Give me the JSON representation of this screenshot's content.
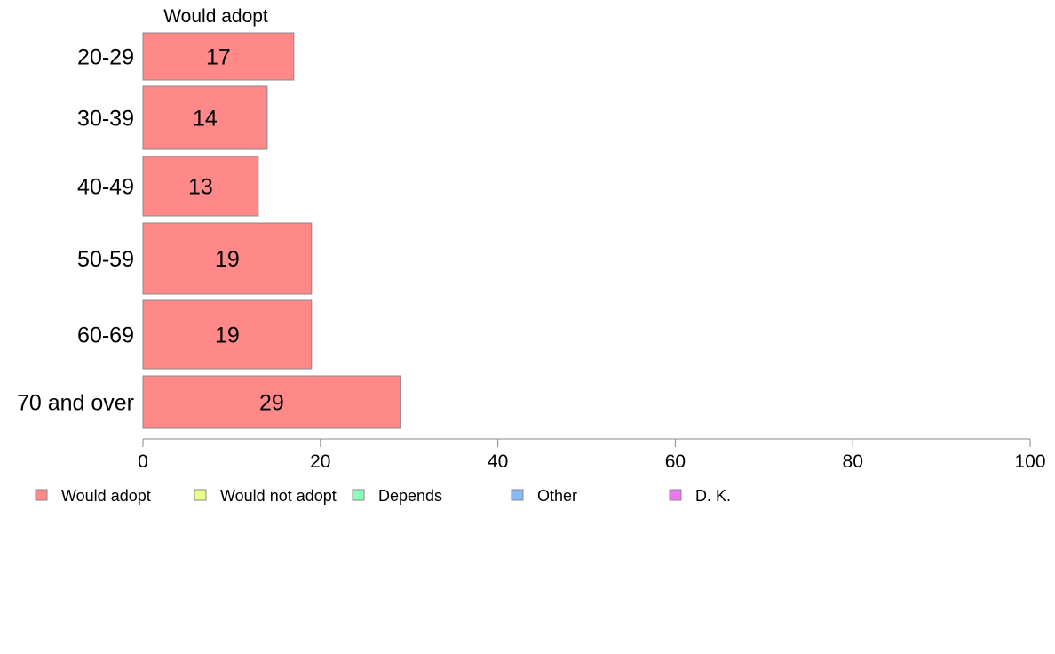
{
  "chart_data": {
    "type": "bar",
    "orientation": "horizontal",
    "categories": [
      "20-29",
      "30-39",
      "40-49",
      "50-59",
      "60-69",
      "70 and over"
    ],
    "series": [
      {
        "name": "Would adopt",
        "values": [
          17,
          14,
          13,
          19,
          19,
          29
        ],
        "color": "#ff8888"
      }
    ],
    "series_header": "Would adopt",
    "xlim": [
      0,
      100
    ],
    "xticks": [
      0,
      20,
      40,
      60,
      80,
      100
    ],
    "grid": false,
    "legend_placement": "bottom",
    "legend": [
      {
        "label": "Would adopt",
        "color": "#ff8888"
      },
      {
        "label": "Would not adopt",
        "color": "#eeff88"
      },
      {
        "label": "Depends",
        "color": "#88ffbb"
      },
      {
        "label": "Other",
        "color": "#88b8f8"
      },
      {
        "label": "D. K.",
        "color": "#ee77ee"
      }
    ]
  }
}
